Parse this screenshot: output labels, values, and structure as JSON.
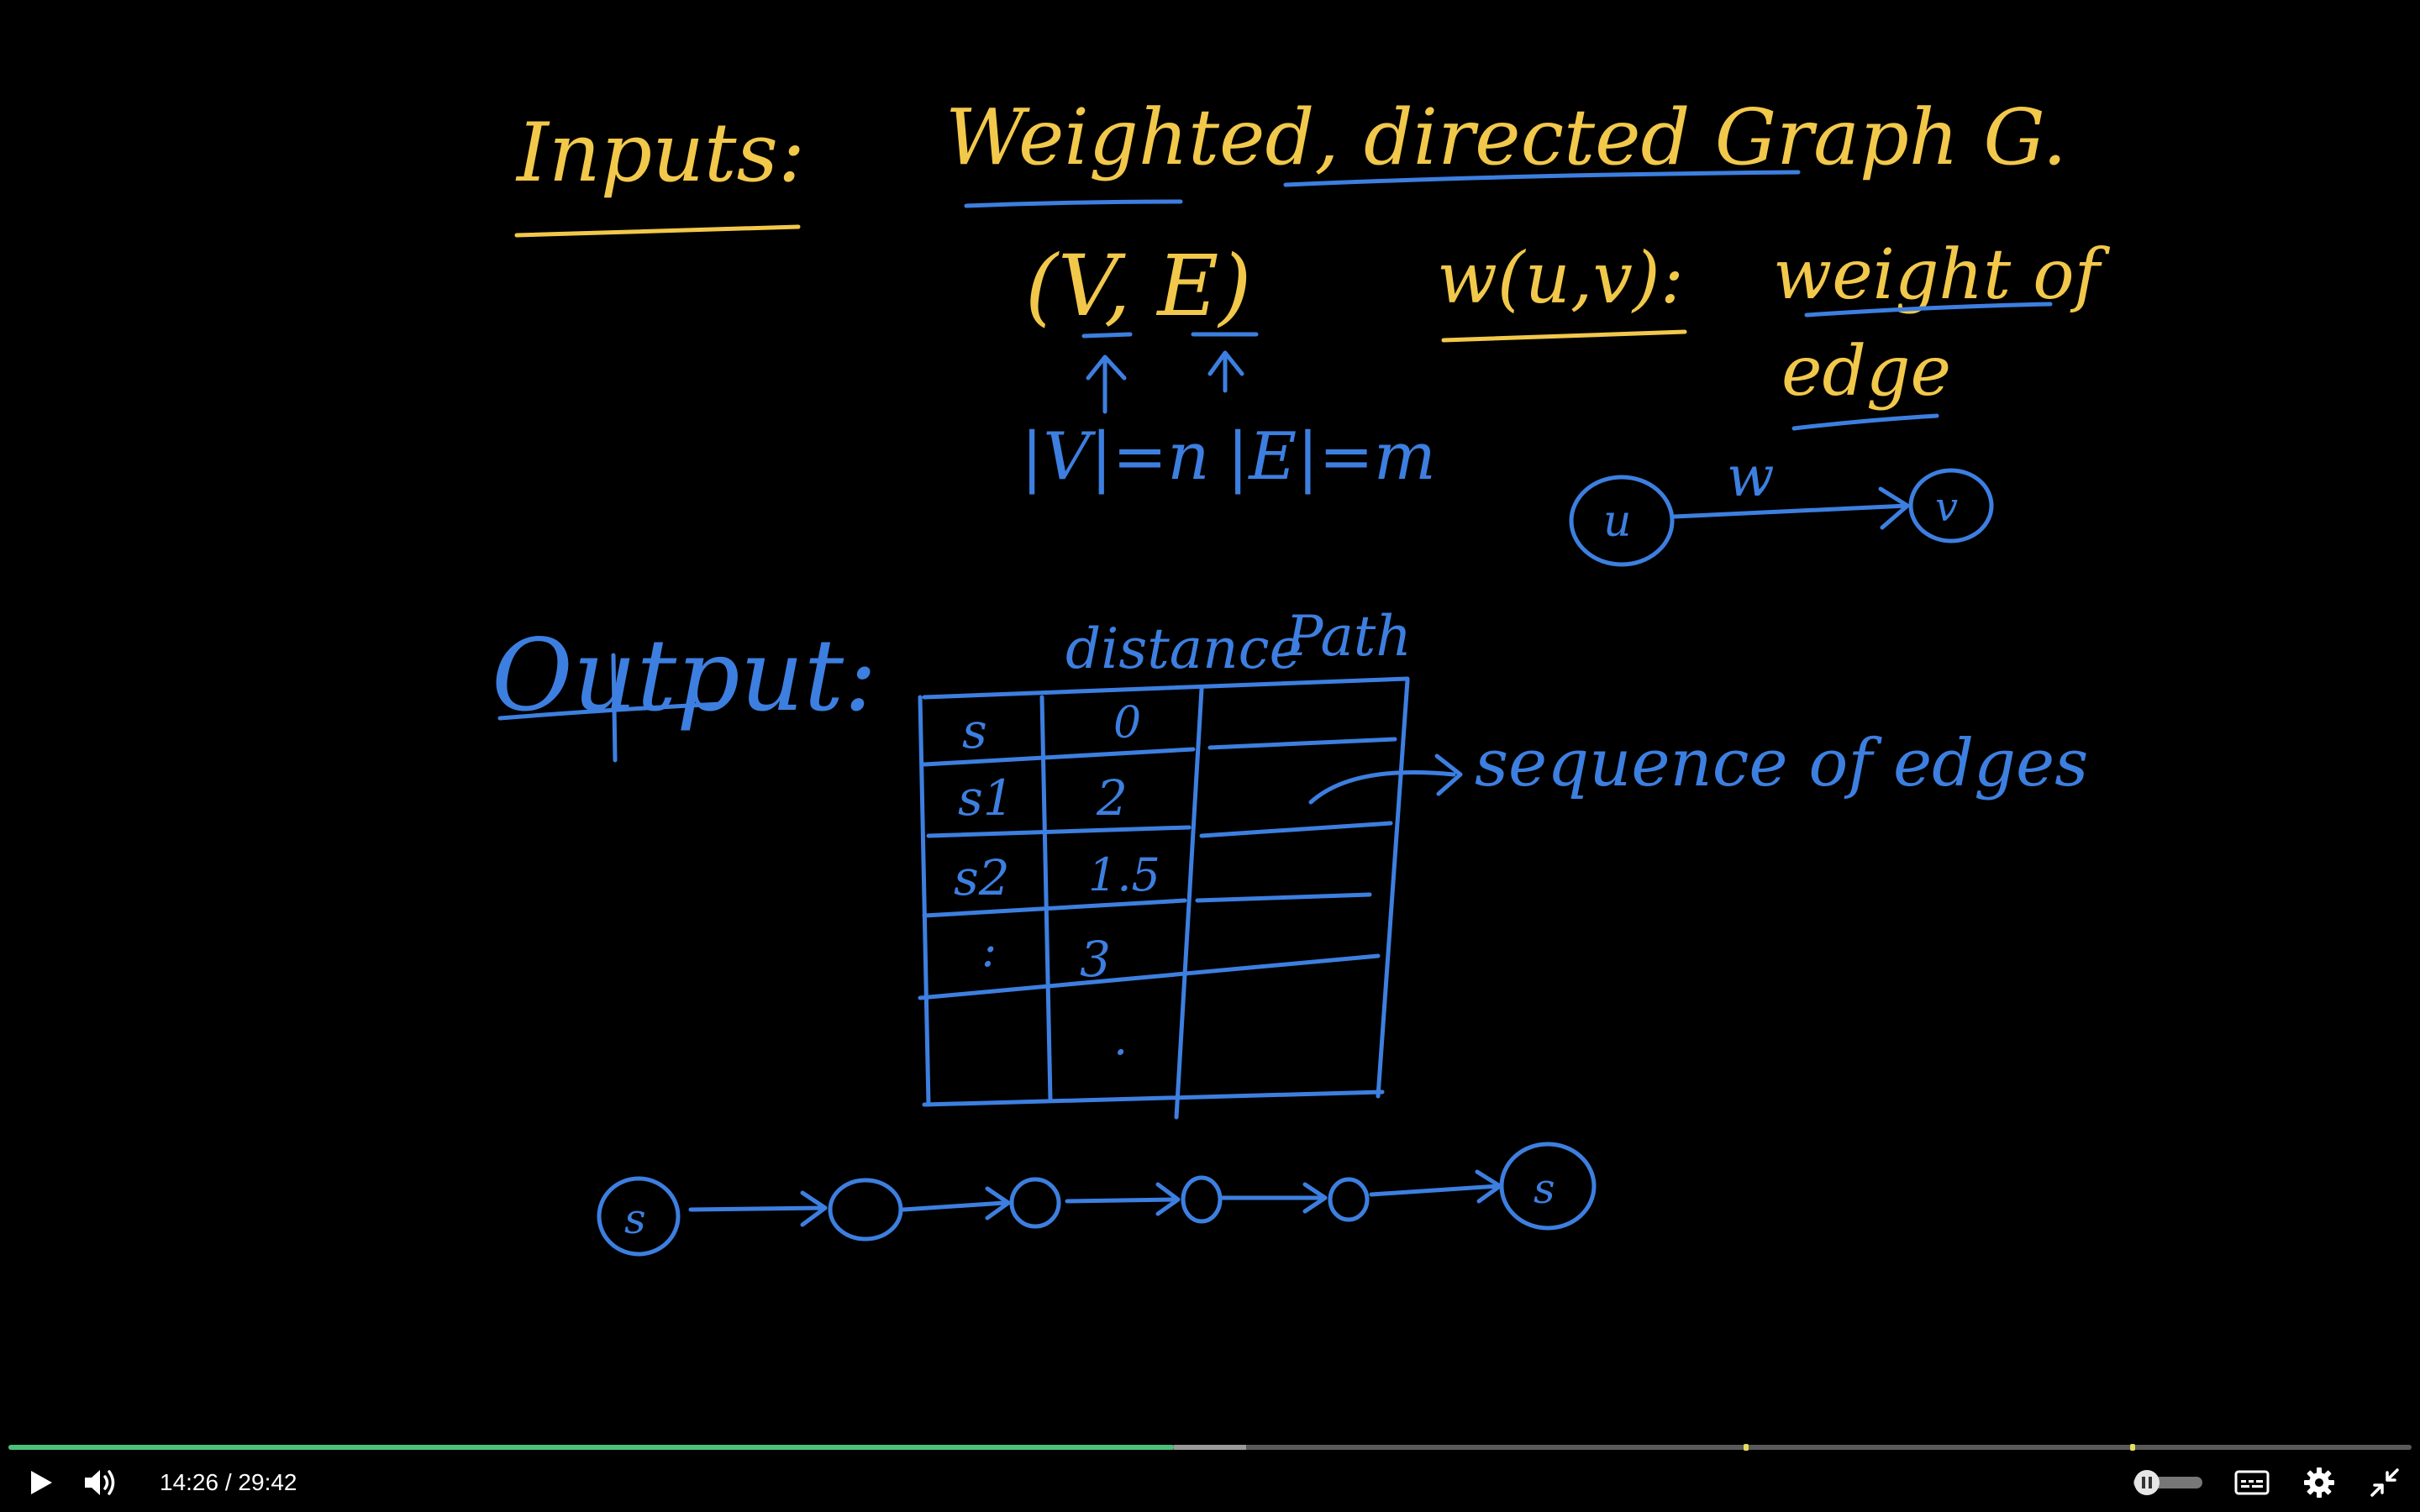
{
  "board": {
    "inputs_label": "Inputs:",
    "graph_text": "Weighted, directed Graph G.",
    "ve_text": "(V, E)",
    "v_size": "|V|=n",
    "e_size": "|E|=m",
    "weight_fn": "w(u,v):",
    "weight_desc_1": "weight of",
    "weight_desc_2": "edge",
    "edge_u": "u",
    "edge_v": "v",
    "edge_w": "w",
    "output_label": "Output:",
    "col_distance": "distance",
    "col_path": "Path",
    "table_rows": [
      {
        "node": "s",
        "distance": "0"
      },
      {
        "node": "s1",
        "distance": "2"
      },
      {
        "node": "s2",
        "distance": "1.5"
      },
      {
        "node": ":",
        "distance": "3"
      },
      {
        "node": "",
        "distance": "."
      }
    ],
    "path_note": "sequence of edges",
    "path_start": "s",
    "path_end": "s"
  },
  "player": {
    "current_time": "14:26",
    "separator": " / ",
    "duration": "29:42",
    "progress": 0.485,
    "buffered": 0.515,
    "chapter_markers": [
      0.723,
      0.884
    ],
    "play_icon": "play-icon",
    "volume_icon": "volume-icon",
    "speed_icon": "pause-icon",
    "captions_icon": "captions-icon",
    "settings_icon": "gear-icon",
    "fullscreen_icon": "exit-fullscreen-icon"
  }
}
